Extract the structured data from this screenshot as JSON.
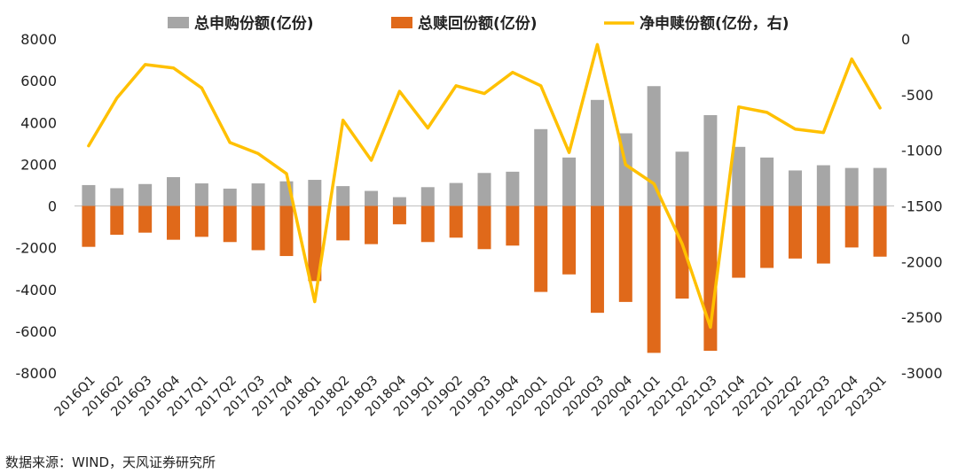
{
  "chart_data": {
    "type": "bar",
    "categories": [
      "2016Q1",
      "2016Q2",
      "2016Q3",
      "2016Q4",
      "2017Q1",
      "2017Q2",
      "2017Q3",
      "2017Q4",
      "2018Q1",
      "2018Q2",
      "2018Q3",
      "2018Q4",
      "2019Q1",
      "2019Q2",
      "2019Q3",
      "2019Q4",
      "2020Q1",
      "2020Q2",
      "2020Q3",
      "2020Q4",
      "2021Q1",
      "2021Q2",
      "2021Q3",
      "2021Q4",
      "2022Q1",
      "2022Q2",
      "2022Q3",
      "2022Q4",
      "2023Q1"
    ],
    "series": [
      {
        "name": "总申购份额(亿份)",
        "kind": "bar",
        "axis": "left",
        "color": "#a6a6a6",
        "values": [
          1000,
          850,
          1050,
          1380,
          1080,
          830,
          1080,
          1180,
          1250,
          950,
          720,
          420,
          900,
          1100,
          1580,
          1640,
          3680,
          2320,
          5080,
          3480,
          5740,
          2600,
          4350,
          2830,
          2320,
          1700,
          1950,
          1820,
          1820
        ]
      },
      {
        "name": "总赎回份额(亿份)",
        "kind": "bar",
        "axis": "left",
        "color": "#e0691a",
        "values": [
          -1960,
          -1380,
          -1280,
          -1620,
          -1480,
          -1730,
          -2120,
          -2400,
          -3600,
          -1650,
          -1830,
          -880,
          -1730,
          -1520,
          -2070,
          -1900,
          -4120,
          -3280,
          -5120,
          -4600,
          -7040,
          -4440,
          -6940,
          -3440,
          -2970,
          -2520,
          -2760,
          -1990,
          -2430
        ]
      },
      {
        "name": "净申赎份额(亿份，右)",
        "kind": "line",
        "axis": "right",
        "color": "#ffc000",
        "values": [
          -960,
          -530,
          -230,
          -260,
          -440,
          -930,
          -1030,
          -1210,
          -2360,
          -730,
          -1090,
          -470,
          -800,
          -420,
          -490,
          -300,
          -420,
          -1020,
          -50,
          -1130,
          -1300,
          -1840,
          -2590,
          -610,
          -660,
          -810,
          -840,
          -180,
          -620
        ]
      }
    ],
    "yleft": {
      "ylim": [
        -8000,
        8000
      ],
      "ticks": [
        8000,
        6000,
        4000,
        2000,
        0,
        -2000,
        -4000,
        -6000,
        -8000
      ]
    },
    "yright": {
      "ylim": [
        -3000,
        0
      ],
      "ticks": [
        0,
        -500,
        -1000,
        -1500,
        -2000,
        -2500,
        -3000
      ]
    },
    "legend": "top",
    "grid": false,
    "source": "数据来源：WIND，天风证券研究所"
  }
}
